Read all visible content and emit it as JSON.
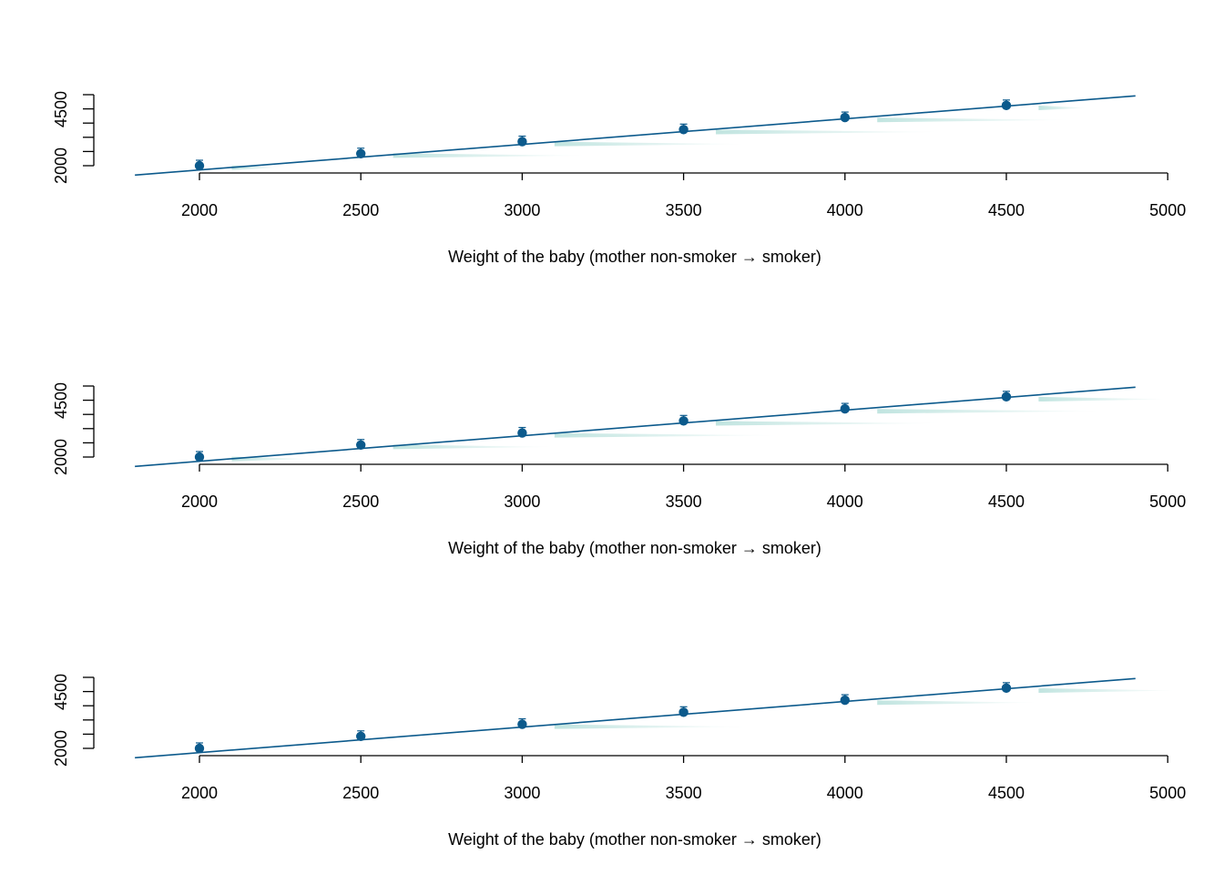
{
  "figure": {
    "panel_count": 3
  },
  "colors": {
    "line": "#0c5a8c",
    "point": "#0c5a8c",
    "density": "#8fcfc7",
    "axis": "#000000"
  },
  "chart_data": [
    {
      "type": "line",
      "title": "",
      "xlabel": "Weight of the baby (mother non-smoker → smoker)",
      "ylabel": "",
      "xlim": [
        1800,
        4900
      ],
      "ylim": [
        1800,
        5000
      ],
      "x_ticks": [
        "2000",
        "2500",
        "3000",
        "3500",
        "4000",
        "4500",
        "5000"
      ],
      "y_ticks": [
        "2000",
        "4500"
      ],
      "series": [
        {
          "x": [
            1800,
            4900
          ],
          "y": [
            1800,
            4900
          ]
        }
      ],
      "points": {
        "x": [
          2000,
          2500,
          3000,
          3500,
          4000,
          4500
        ],
        "y": [
          2000,
          2500,
          3000,
          3500,
          4000,
          4500
        ]
      },
      "density_tails": [
        {
          "x0": 2100,
          "x1": 2250,
          "y": 1920
        },
        {
          "x0": 2600,
          "x1": 3200,
          "y": 2420
        },
        {
          "x0": 3100,
          "x1": 3700,
          "y": 2900
        },
        {
          "x0": 3600,
          "x1": 4300,
          "y": 3400
        },
        {
          "x0": 4100,
          "x1": 4700,
          "y": 3900
        },
        {
          "x0": 4600,
          "x1": 4750,
          "y": 4400
        }
      ],
      "grid": false,
      "legend": "none"
    },
    {
      "type": "line",
      "title": "",
      "xlabel": "Weight of the baby (mother non-smoker → smoker)",
      "ylabel": "",
      "xlim": [
        1800,
        4900
      ],
      "ylim": [
        1800,
        5000
      ],
      "x_ticks": [
        "2000",
        "2500",
        "3000",
        "3500",
        "4000",
        "4500",
        "5000"
      ],
      "y_ticks": [
        "2000",
        "4500"
      ],
      "series": [
        {
          "x": [
            1800,
            4900
          ],
          "y": [
            1800,
            4900
          ]
        }
      ],
      "points": {
        "x": [
          2000,
          2500,
          3000,
          3500,
          4000,
          4500
        ],
        "y": [
          2000,
          2500,
          3000,
          3500,
          4000,
          4500
        ]
      },
      "density_tails": [
        {
          "x0": 2100,
          "x1": 2350,
          "y": 1920
        },
        {
          "x0": 2600,
          "x1": 3100,
          "y": 2420
        },
        {
          "x0": 3100,
          "x1": 3800,
          "y": 2900
        },
        {
          "x0": 3600,
          "x1": 4300,
          "y": 3400
        },
        {
          "x0": 4100,
          "x1": 4800,
          "y": 3900
        },
        {
          "x0": 4600,
          "x1": 5000,
          "y": 4400
        }
      ],
      "grid": false,
      "legend": "none"
    },
    {
      "type": "line",
      "title": "",
      "xlabel": "Weight of the baby (mother non-smoker → smoker)",
      "ylabel": "",
      "xlim": [
        1800,
        4900
      ],
      "ylim": [
        1800,
        5000
      ],
      "x_ticks": [
        "2000",
        "2500",
        "3000",
        "3500",
        "4000",
        "4500",
        "5000"
      ],
      "y_ticks": [
        "2000",
        "4500"
      ],
      "series": [
        {
          "x": [
            1800,
            4900
          ],
          "y": [
            1800,
            4900
          ]
        }
      ],
      "points": {
        "x": [
          2000,
          2500,
          3000,
          3500,
          4000,
          4500
        ],
        "y": [
          2000,
          2500,
          3000,
          3500,
          4000,
          4500
        ]
      },
      "density_tails": [
        {
          "x0": 3100,
          "x1": 3700,
          "y": 2900
        },
        {
          "x0": 4100,
          "x1": 4600,
          "y": 3900
        },
        {
          "x0": 4600,
          "x1": 5030,
          "y": 4400
        }
      ],
      "grid": false,
      "legend": "none"
    }
  ]
}
